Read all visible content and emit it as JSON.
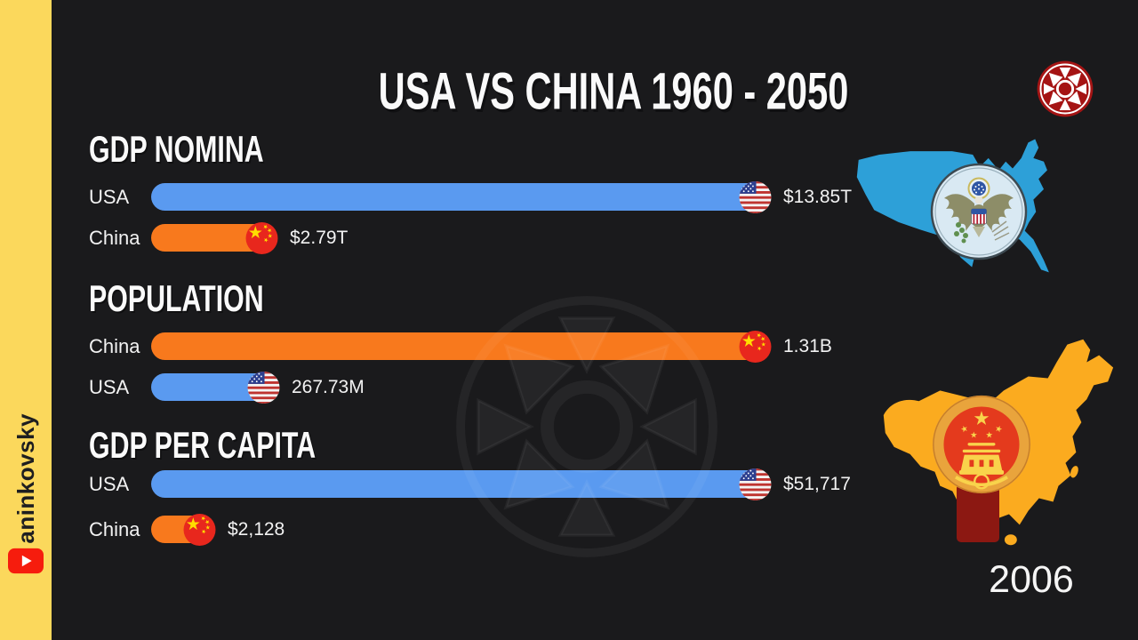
{
  "title": "USA VS CHINA 1960 - 2050",
  "year": "2006",
  "channel": {
    "name": "aninkovsky"
  },
  "icons": {
    "channel_badge": "youtube-play-icon",
    "brand": "sun-emblem-icon",
    "usa": "usa-flag-icon",
    "china": "china-flag-icon",
    "usa_map": "usa-map-silhouette",
    "china_map": "china-map-silhouette"
  },
  "colors": {
    "background": "#1a1a1c",
    "sidebar": "#fbd85c",
    "usa_bar": "#5a9af0",
    "china_bar": "#f8791d",
    "usa_map": "#2da0d8",
    "china_map": "#fbab1f",
    "logo_red": "#a51414",
    "youtube_red": "#f61c0d",
    "text": "#f2f2f2"
  },
  "chart_data": [
    {
      "type": "bar",
      "orientation": "horizontal",
      "title": "GDP NOMINA",
      "unit": "trillion USD",
      "max_value": 13.85,
      "bars": [
        {
          "label": "USA",
          "value": 13.85,
          "display": "$13.85T",
          "flag": "usa",
          "color": "#5a9af0"
        },
        {
          "label": "China",
          "value": 2.79,
          "display": "$2.79T",
          "flag": "china",
          "color": "#f8791d"
        }
      ]
    },
    {
      "type": "bar",
      "orientation": "horizontal",
      "title": "POPULATION",
      "unit": "millions of people",
      "max_value": 1310,
      "bars": [
        {
          "label": "China",
          "value": 1310,
          "display": "1.31B",
          "flag": "china",
          "color": "#f8791d"
        },
        {
          "label": "USA",
          "value": 267.73,
          "display": "267.73M",
          "flag": "usa",
          "color": "#5a9af0"
        }
      ]
    },
    {
      "type": "bar",
      "orientation": "horizontal",
      "title": "GDP PER CAPITA",
      "unit": "USD",
      "max_value": 51717,
      "bars": [
        {
          "label": "USA",
          "value": 51717,
          "display": "$51,717",
          "flag": "usa",
          "color": "#5a9af0"
        },
        {
          "label": "China",
          "value": 2128,
          "display": "$2,128",
          "flag": "china",
          "color": "#f8791d"
        }
      ]
    }
  ]
}
